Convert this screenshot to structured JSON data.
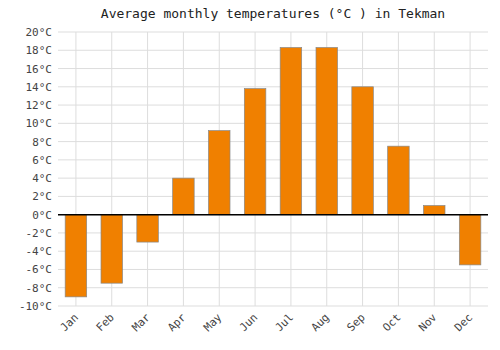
{
  "chart_data": {
    "type": "bar",
    "title": "Average monthly temperatures (°C ) in Tekman",
    "categories": [
      "Jan",
      "Feb",
      "Mar",
      "Apr",
      "May",
      "Jun",
      "Jul",
      "Aug",
      "Sep",
      "Oct",
      "Nov",
      "Dec"
    ],
    "values": [
      -9,
      -7.5,
      -3,
      4,
      9.2,
      13.8,
      18.3,
      18.3,
      14,
      7.5,
      1,
      -5.5
    ],
    "color": "#F08000",
    "ylim": [
      -10,
      20
    ],
    "yticks": [
      {
        "value": -10,
        "label": "-10°C"
      },
      {
        "value": -8,
        "label": "-8°C"
      },
      {
        "value": -6,
        "label": "-6°C"
      },
      {
        "value": -4,
        "label": "-4°C"
      },
      {
        "value": -2,
        "label": "-2°C"
      },
      {
        "value": 0,
        "label": "0°C"
      },
      {
        "value": 2,
        "label": "2°C"
      },
      {
        "value": 4,
        "label": "4°C"
      },
      {
        "value": 6,
        "label": "6°C"
      },
      {
        "value": 8,
        "label": "8°C"
      },
      {
        "value": 10,
        "label": "10°C"
      },
      {
        "value": 12,
        "label": "12°C"
      },
      {
        "value": 14,
        "label": "14°C"
      },
      {
        "value": 16,
        "label": "16°C"
      },
      {
        "value": 18,
        "label": "18°C"
      },
      {
        "value": 20,
        "label": "20°C"
      }
    ],
    "grid": true
  }
}
